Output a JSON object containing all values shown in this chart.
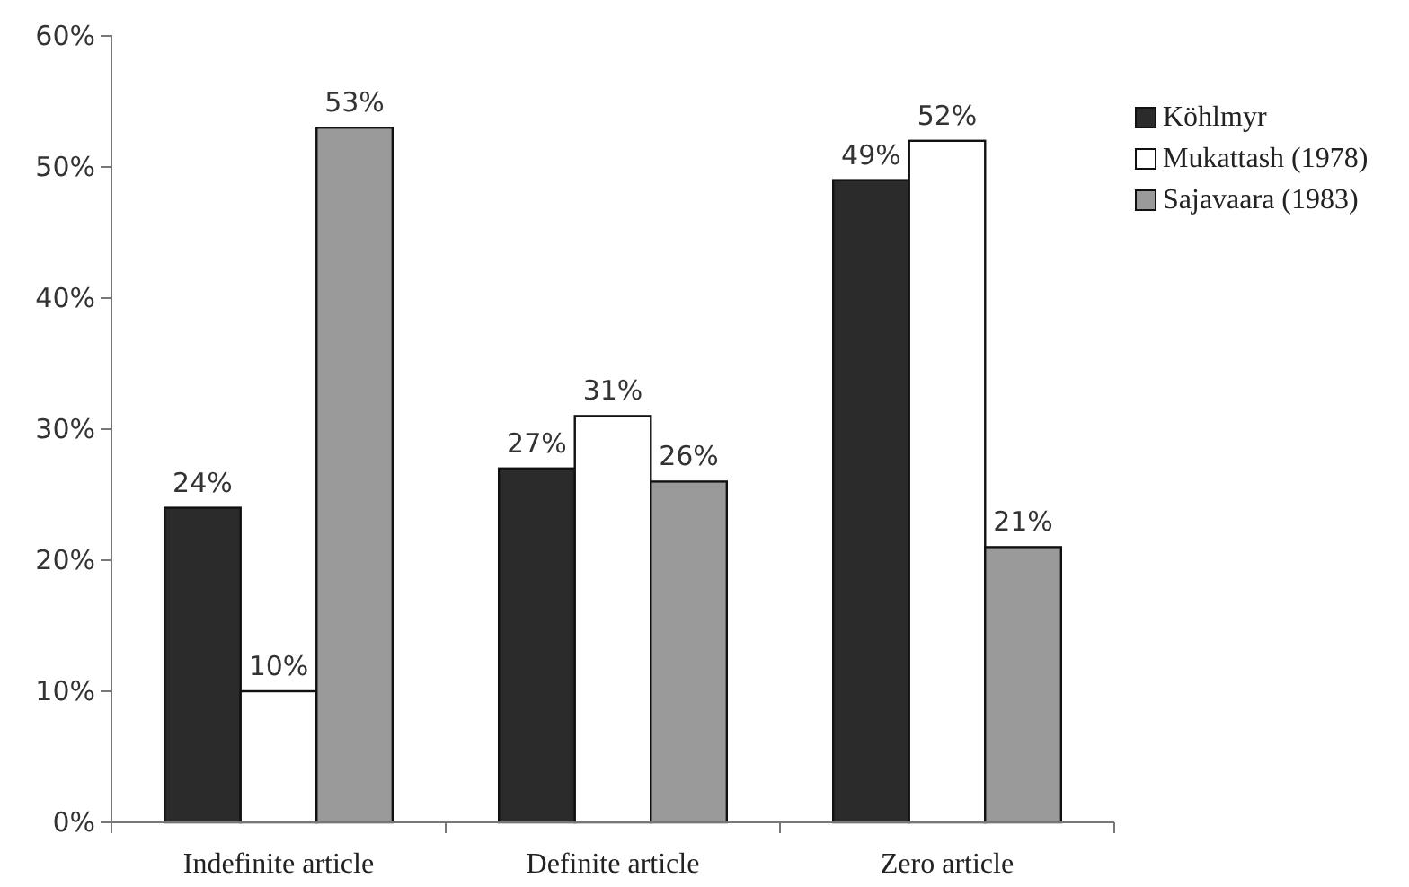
{
  "chart_data": {
    "type": "bar",
    "categories": [
      "Indefinite article",
      "Definite article",
      "Zero article"
    ],
    "series": [
      {
        "name": "Köhlmyr",
        "color": "#2b2b2b",
        "values": [
          24,
          27,
          49
        ],
        "value_labels": [
          "24%",
          "27%",
          "49%"
        ]
      },
      {
        "name": "Mukattash (1978)",
        "color": "#ffffff",
        "values": [
          10,
          31,
          52
        ],
        "value_labels": [
          "10%",
          "31%",
          "52%"
        ]
      },
      {
        "name": "Sajavaara (1983)",
        "color": "#9a9a9a",
        "values": [
          53,
          26,
          21
        ],
        "value_labels": [
          "53%",
          "26%",
          "21%"
        ]
      }
    ],
    "ylim": [
      0,
      60
    ],
    "yticks": [
      {
        "value": 0,
        "label": "0%"
      },
      {
        "value": 10,
        "label": "10%"
      },
      {
        "value": 20,
        "label": "20%"
      },
      {
        "value": 30,
        "label": "30%"
      },
      {
        "value": 40,
        "label": "40%"
      },
      {
        "value": 50,
        "label": "50%"
      },
      {
        "value": 60,
        "label": "60%"
      }
    ],
    "legend": "right",
    "grid": false
  }
}
